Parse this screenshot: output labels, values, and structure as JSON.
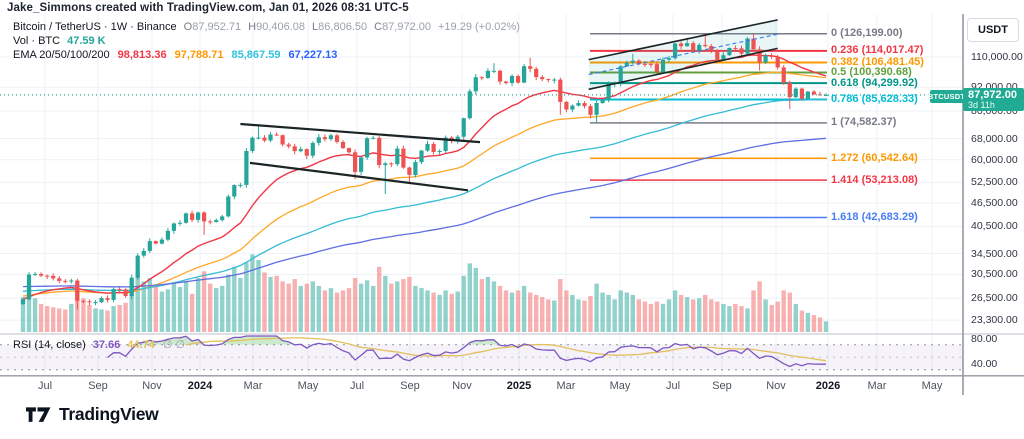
{
  "watermark": "Jake_Simmons created with TradingView.com, Jan 01, 2026 08:31 UTC-5",
  "header": {
    "title": "Bitcoin / TetherUS · 1W · Binance",
    "ohlc": [
      {
        "k": "O",
        "v": "87,952.71"
      },
      {
        "k": "H",
        "v": "90,406.08"
      },
      {
        "k": "L",
        "v": "86,806.50"
      },
      {
        "k": "C",
        "v": "87,972.00"
      }
    ],
    "change": "+19.29 (+0.02%)",
    "vol_label": "Vol · BTC",
    "vol_value": "47.59 K",
    "ema_label": "EMA 20/50/100/200",
    "ema": [
      {
        "v": "98,813.36",
        "color": "#f23645"
      },
      {
        "v": "97,788.71",
        "color": "#ff9800"
      },
      {
        "v": "85,867.59",
        "color": "#31c4dd"
      },
      {
        "v": "67,227.13",
        "color": "#2962ff"
      }
    ]
  },
  "rsi_legend": {
    "label": "RSI (14, close)",
    "value": "37.66",
    "ma_value": "44.74",
    "flags": "∅  ∅"
  },
  "price_axis": {
    "currency": "USDT",
    "ticks": [
      110000,
      92000,
      80000,
      68000,
      60000,
      52500,
      46500,
      40500,
      34500,
      30500,
      26500,
      23300
    ],
    "rsi_ticks": [
      {
        "value": 80,
        "label": "80.00"
      },
      {
        "value": 40,
        "label": "40.00"
      }
    ],
    "last_price_label": "87,972.00",
    "countdown": "3d 11h"
  },
  "symbol_tag": "BTCUSDT",
  "time_axis": [
    {
      "label": "Jul",
      "major": false
    },
    {
      "label": "Sep",
      "major": false
    },
    {
      "label": "Nov",
      "major": false
    },
    {
      "label": "2024",
      "major": true
    },
    {
      "label": "Mar",
      "major": false
    },
    {
      "label": "May",
      "major": false
    },
    {
      "label": "Jul",
      "major": false
    },
    {
      "label": "Sep",
      "major": false
    },
    {
      "label": "Nov",
      "major": false
    },
    {
      "label": "2025",
      "major": true
    },
    {
      "label": "Mar",
      "major": false
    },
    {
      "label": "May",
      "major": false
    },
    {
      "label": "Jul",
      "major": false
    },
    {
      "label": "Sep",
      "major": false
    },
    {
      "label": "Nov",
      "major": false
    },
    {
      "label": "2026",
      "major": true
    },
    {
      "label": "Mar",
      "major": false
    },
    {
      "label": "May",
      "major": false
    }
  ],
  "logo_text": "TradingView",
  "colors": {
    "up": "#26a69a",
    "down": "#ef5350",
    "vol_up": "rgba(38,166,154,0.5)",
    "vol_down": "rgba(239,83,80,0.45)",
    "ema20": "#f23645",
    "ema50": "#ffa726",
    "ema100": "#35bcd4",
    "ema200": "#5f6ee0",
    "rsi_line": "#7e57c2",
    "rsi_ma": "#e3c05c",
    "rsi_band_fill": "rgba(126,87,194,0.08)",
    "rsi_overbought_fill": "rgba(76,175,80,0.28)",
    "badge": "#22ab94",
    "price_line": "#26a69a",
    "grid": "#eef1f8",
    "separator": "#9298a2",
    "channel_stroke": "#1c2526",
    "channel_up_fill": "rgba(38,166,154,0.10)",
    "channel_mid": "#3179f5"
  },
  "chart_data": {
    "type": "candlestick",
    "title": "Bitcoin / TetherUS · 1W · Binance",
    "timeframe": "1W",
    "x_start": "2023-06-12",
    "x_step": "1 week",
    "scale": "log",
    "ohlc_last": {
      "open": 87952.71,
      "high": 90406.08,
      "low": 86806.5,
      "close": 87972.0,
      "change": 19.29,
      "change_pct": 0.02
    },
    "closes": [
      26330,
      30480,
      30590,
      30290,
      30250,
      29790,
      29350,
      29280,
      29420,
      26100,
      26010,
      25870,
      25900,
      26530,
      26250,
      27970,
      27920,
      26860,
      29920,
      34090,
      35050,
      37130,
      36580,
      37450,
      39460,
      41200,
      41360,
      43710,
      42070,
      43940,
      41700,
      41550,
      42030,
      42950,
      48290,
      51660,
      51730,
      63170,
      68330,
      68390,
      67210,
      69640,
      69360,
      65660,
      64940,
      63110,
      63890,
      61450,
      66270,
      68550,
      67760,
      69310,
      66670,
      64260,
      62680,
      55850,
      60830,
      68150,
      68250,
      58120,
      58710,
      58460,
      64090,
      57300,
      54840,
      59180,
      63330,
      65890,
      62820,
      63190,
      68390,
      67010,
      68740,
      76680,
      89870,
      97670,
      97280,
      101370,
      101420,
      95160,
      94310,
      98310,
      94560,
      104180,
      102610,
      97690,
      96560,
      96120,
      96260,
      84380,
      80690,
      82570,
      83790,
      82340,
      78210,
      83840,
      85170,
      93780,
      94290,
      104110,
      106440,
      107720,
      105640,
      105620,
      105470,
      100980,
      108270,
      109220,
      119120,
      117230,
      119380,
      114160,
      118170,
      117370,
      113440,
      108240,
      111170,
      115980,
      115760,
      112230,
      122680,
      115040,
      106450,
      111000,
      110080,
      103480,
      94510,
      86790,
      91280,
      85980,
      89690,
      88230,
      87953,
      87972
    ],
    "volumes_kbtc": [
      155,
      210,
      150,
      125,
      115,
      110,
      105,
      100,
      125,
      195,
      150,
      120,
      105,
      100,
      95,
      115,
      120,
      130,
      215,
      265,
      225,
      240,
      205,
      180,
      190,
      215,
      200,
      225,
      170,
      240,
      270,
      215,
      195,
      205,
      255,
      290,
      240,
      310,
      345,
      320,
      265,
      245,
      250,
      225,
      215,
      235,
      205,
      215,
      225,
      205,
      185,
      195,
      175,
      185,
      195,
      240,
      215,
      230,
      205,
      290,
      250,
      215,
      225,
      235,
      245,
      205,
      195,
      185,
      175,
      165,
      185,
      170,
      180,
      250,
      305,
      285,
      235,
      245,
      225,
      205,
      185,
      175,
      185,
      205,
      175,
      165,
      155,
      145,
      140,
      235,
      185,
      165,
      145,
      140,
      160,
      215,
      175,
      165,
      145,
      185,
      175,
      165,
      145,
      135,
      125,
      135,
      125,
      145,
      185,
      165,
      155,
      145,
      150,
      165,
      145,
      135,
      125,
      115,
      125,
      115,
      105,
      185,
      225,
      145,
      120,
      135,
      185,
      175,
      125,
      95,
      85,
      75,
      65,
      47.59
    ],
    "wick_overrides": {
      "9": {
        "low": 24800
      },
      "30": {
        "low": 38500
      },
      "39": {
        "high": 73800
      },
      "55": {
        "low": 53500
      },
      "60": {
        "low": 49000
      },
      "64": {
        "low": 52550
      },
      "75": {
        "high": 99500
      },
      "78": {
        "high": 106100
      },
      "84": {
        "high": 109600
      },
      "89": {
        "low": 78200
      },
      "94": {
        "low": 76600
      },
      "95": {
        "low": 74582.37
      },
      "101": {
        "high": 112000
      },
      "110": {
        "high": 123200
      },
      "113": {
        "high": 124457
      },
      "121": {
        "high": 126199
      },
      "122": {
        "low": 101500
      },
      "127": {
        "low": 80920
      }
    },
    "ema_periods": [
      20,
      50,
      100,
      200
    ],
    "ema_last_values": [
      98813.36,
      97788.71,
      85867.59,
      67227.13
    ],
    "rsi": {
      "period": 14,
      "last": 37.66,
      "ma_last": 44.74,
      "bands": [
        70,
        50,
        30
      ],
      "visible_scale": [
        80,
        40
      ]
    },
    "fib_levels": [
      {
        "level": 0,
        "price": 126199.0,
        "label": "0 (126,199.00)",
        "color": "#787b86",
        "width": 1.5
      },
      {
        "level": 0.236,
        "price": 114017.47,
        "label": "0.236 (114,017.47)",
        "color": "#f23645",
        "width": 2
      },
      {
        "level": 0.382,
        "price": 106481.45,
        "label": "0.382 (106,481.45)",
        "color": "#ff9800",
        "width": 2
      },
      {
        "level": 0.5,
        "price": 100390.68,
        "label": "0.5 (100,390.68)",
        "color": "#63a03c",
        "width": 2
      },
      {
        "level": 0.618,
        "price": 94299.92,
        "label": "0.618 (94,299.92)",
        "color": "#009688",
        "width": 2
      },
      {
        "level": 0.786,
        "price": 85628.33,
        "label": "0.786 (85,628.33)",
        "color": "#00bcd4",
        "width": 2
      },
      {
        "level": 1,
        "price": 74582.37,
        "label": "1 (74,582.37)",
        "color": "#787b86",
        "width": 1.5
      },
      {
        "level": 1.272,
        "price": 60542.64,
        "label": "1.272 (60,542.64)",
        "color": "#ff9800",
        "width": 1.5
      },
      {
        "level": 1.414,
        "price": 53213.08,
        "label": "1.414 (53,213.08)",
        "color": "#f23645",
        "width": 1.5
      },
      {
        "level": 1.618,
        "price": 42683.29,
        "label": "1.618 (42,683.29)",
        "color": "#4a7df2",
        "width": 1.5
      }
    ],
    "channels": [
      {
        "name": "descending-channel-2024",
        "top": {
          "i1": 36,
          "p1": 74100,
          "i2": 75.7,
          "p2": 66600
        },
        "bottom": {
          "i1": 37.6,
          "p1": 58900,
          "i2": 73.7,
          "p2": 50100
        },
        "fill": false,
        "stroke_width": 2.2
      },
      {
        "name": "ascending-channel-2025",
        "top": {
          "i1": 93.7,
          "p1": 108300,
          "i2": 125,
          "p2": 136900
        },
        "bottom": {
          "i1": 93.7,
          "p1": 90900,
          "i2": 125,
          "p2": 115700
        },
        "fill": true,
        "midline": true,
        "stroke_width": 1.6
      }
    ],
    "price_line": 87972.0,
    "ylim_log": [
      23300,
      126199
    ]
  }
}
